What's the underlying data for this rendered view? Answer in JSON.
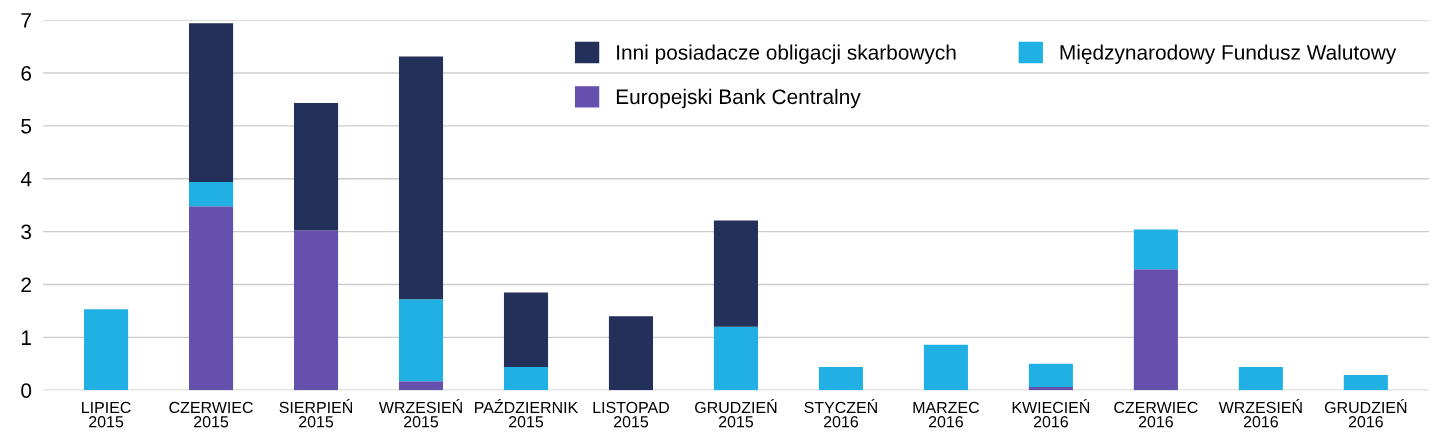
{
  "chart_data": {
    "type": "bar",
    "stacked": true,
    "categories": [
      "LIPIEC\n2015",
      "CZERWIEC\n2015",
      "SIERPIEŃ\n2015",
      "WRZESIEŃ\n2015",
      "PAŹDZIERNIK\n2015",
      "LISTOPAD\n2015",
      "GRUDZIEŃ\n2015",
      "STYCZEŃ\n2016",
      "MARZEC\n2016",
      "KWIECIEŃ\n2016",
      "CZERWIEC\n2016",
      "WRZESIEŃ\n2016",
      "GRUDZIEŃ\n2016"
    ],
    "series": [
      {
        "name": "Europejski Bank Centralny",
        "color": "#6650ae",
        "values": [
          0,
          3.48,
          3.02,
          0.17,
          0,
          0,
          0,
          0,
          0,
          0.06,
          2.29,
          0,
          0
        ]
      },
      {
        "name": "Międzynarodowy Fundusz Walutowy",
        "color": "#20b0e3",
        "values": [
          1.53,
          0.46,
          0,
          1.55,
          0.44,
          0,
          1.2,
          0.44,
          0.86,
          0.44,
          0.75,
          0.44,
          0.29
        ]
      },
      {
        "name": "Inni posiadacze obligacji skarbowych",
        "color": "#22305a",
        "values": [
          0,
          3.0,
          2.41,
          4.59,
          1.41,
          1.4,
          2.01,
          0,
          0,
          0,
          0,
          0,
          0
        ]
      }
    ],
    "ylim": [
      0,
      7
    ],
    "yticks": [
      0,
      1,
      2,
      3,
      4,
      5,
      6,
      7
    ],
    "grid": "y",
    "legend": "top right"
  }
}
